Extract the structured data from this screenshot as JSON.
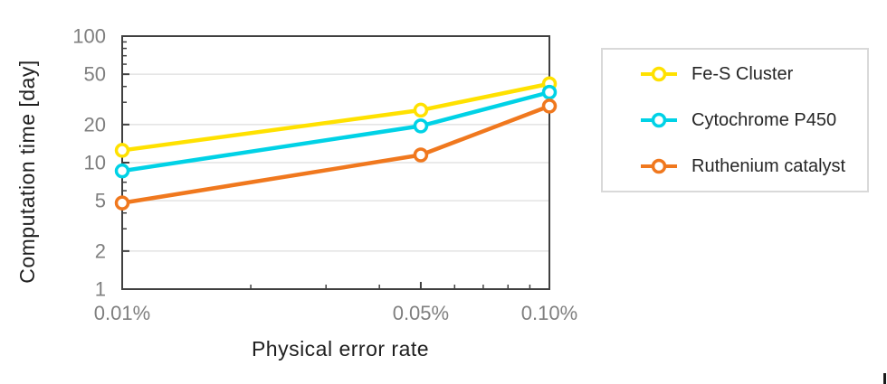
{
  "chart_data": {
    "type": "line",
    "title": "",
    "x_axis": {
      "label": "Physical error rate",
      "scale": "log",
      "range": [
        0.0001,
        0.001
      ],
      "major_ticks": [
        {
          "value": 0.0001,
          "label": "0.01%"
        },
        {
          "value": 0.0005,
          "label": "0.05%"
        },
        {
          "value": 0.001,
          "label": "0.10%"
        }
      ],
      "minor_ticks": [
        0.0002,
        0.0003,
        0.0004,
        0.0006,
        0.0007,
        0.0008,
        0.0009
      ]
    },
    "y_axis": {
      "label": "Computation time [day]",
      "scale": "log",
      "range": [
        1,
        100
      ],
      "major_ticks": [
        {
          "value": 1,
          "label": "1"
        },
        {
          "value": 2,
          "label": "2"
        },
        {
          "value": 5,
          "label": "5"
        },
        {
          "value": 10,
          "label": "10"
        },
        {
          "value": 20,
          "label": "20"
        },
        {
          "value": 50,
          "label": "50"
        },
        {
          "value": 100,
          "label": "100"
        }
      ],
      "minor_ticks": [
        3,
        4,
        6,
        7,
        8,
        9,
        30,
        40,
        60,
        70,
        80,
        90
      ]
    },
    "x": [
      0.0001,
      0.0005,
      0.001
    ],
    "series": [
      {
        "name": "Fe-S Cluster",
        "color": "#ffe100",
        "values": [
          12.5,
          26,
          42
        ]
      },
      {
        "name": "Cytochrome P450",
        "color": "#00d2e6",
        "values": [
          8.6,
          19.5,
          36
        ]
      },
      {
        "name": "Ruthenium catalyst",
        "color": "#f0781e",
        "values": [
          4.8,
          11.5,
          28
        ]
      }
    ],
    "grid": "horizontal-major",
    "legend_position": "right"
  },
  "style_colors": {
    "spine": "#404040",
    "gridline": "#e3e3e3",
    "tick_label": "#7f7f7f",
    "axis_title": "#1f1f1f",
    "marker_fill": "#ffffff",
    "legend_border": "#d9d9d9"
  }
}
